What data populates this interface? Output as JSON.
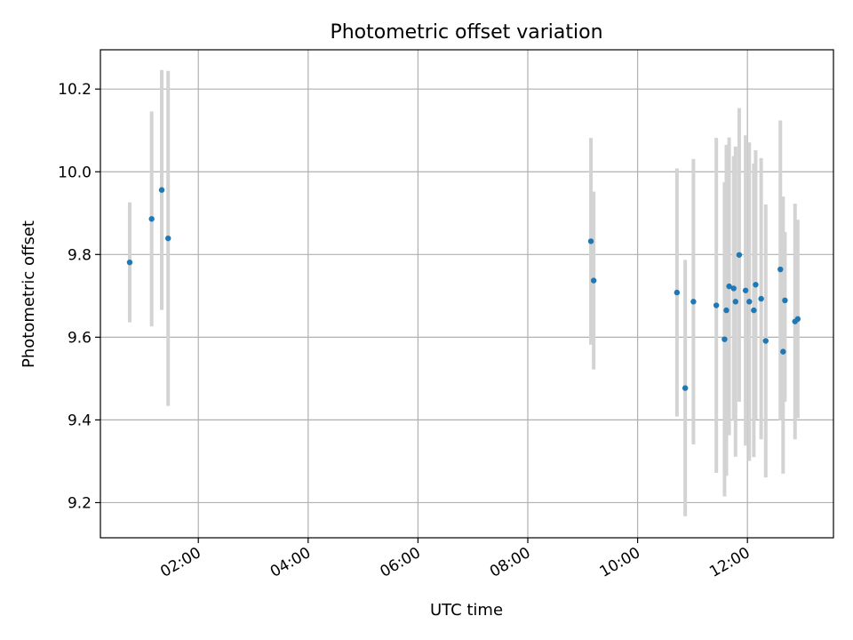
{
  "chart_data": {
    "type": "scatter",
    "title": "Photometric offset variation",
    "xlabel": "UTC time",
    "ylabel": "Photometric offset",
    "x_unit": "UTC hh:mm",
    "xlim": [
      "00:13",
      "13:34"
    ],
    "ylim": [
      9.115,
      10.295
    ],
    "xticks": [
      "02:00",
      "04:00",
      "06:00",
      "08:00",
      "10:00",
      "12:00"
    ],
    "yticks": [
      9.2,
      9.4,
      9.6,
      9.8,
      10.0,
      10.2
    ],
    "grid": true,
    "legend": "none",
    "colors": {
      "point": "#1f77b4",
      "errorbar": "#d3d3d3",
      "grid": "#b0b0b0"
    },
    "series": [
      {
        "points": [
          {
            "x": "00:45",
            "y": 9.781,
            "yerr_low": 9.636,
            "yerr_high": 9.926
          },
          {
            "x": "01:09",
            "y": 9.886,
            "yerr_low": 9.626,
            "yerr_high": 10.146
          },
          {
            "x": "01:20",
            "y": 9.956,
            "yerr_low": 9.666,
            "yerr_high": 10.246
          },
          {
            "x": "01:27",
            "y": 9.839,
            "yerr_low": 9.434,
            "yerr_high": 10.244
          },
          {
            "x": "09:09",
            "y": 9.832,
            "yerr_low": 9.582,
            "yerr_high": 10.082
          },
          {
            "x": "09:12",
            "y": 9.737,
            "yerr_low": 9.522,
            "yerr_high": 9.952
          },
          {
            "x": "10:43",
            "y": 9.708,
            "yerr_low": 9.408,
            "yerr_high": 10.008
          },
          {
            "x": "10:52",
            "y": 9.477,
            "yerr_low": 9.167,
            "yerr_high": 9.787
          },
          {
            "x": "11:01",
            "y": 9.686,
            "yerr_low": 9.341,
            "yerr_high": 10.031
          },
          {
            "x": "11:26",
            "y": 9.677,
            "yerr_low": 9.272,
            "yerr_high": 10.082
          },
          {
            "x": "11:35",
            "y": 9.595,
            "yerr_low": 9.215,
            "yerr_high": 9.975
          },
          {
            "x": "11:37",
            "y": 9.665,
            "yerr_low": 9.265,
            "yerr_high": 10.065
          },
          {
            "x": "11:40",
            "y": 9.723,
            "yerr_low": 9.363,
            "yerr_high": 10.083
          },
          {
            "x": "11:45",
            "y": 9.718,
            "yerr_low": 9.398,
            "yerr_high": 10.038
          },
          {
            "x": "11:47",
            "y": 9.686,
            "yerr_low": 9.311,
            "yerr_high": 10.061
          },
          {
            "x": "11:51",
            "y": 9.799,
            "yerr_low": 9.444,
            "yerr_high": 10.154
          },
          {
            "x": "11:58",
            "y": 9.713,
            "yerr_low": 9.338,
            "yerr_high": 10.088
          },
          {
            "x": "12:02",
            "y": 9.686,
            "yerr_low": 9.301,
            "yerr_high": 10.071
          },
          {
            "x": "12:07",
            "y": 9.665,
            "yerr_low": 9.31,
            "yerr_high": 10.02
          },
          {
            "x": "12:09",
            "y": 9.727,
            "yerr_low": 9.402,
            "yerr_high": 10.052
          },
          {
            "x": "12:15",
            "y": 9.693,
            "yerr_low": 9.353,
            "yerr_high": 10.033
          },
          {
            "x": "12:20",
            "y": 9.591,
            "yerr_low": 9.261,
            "yerr_high": 9.921
          },
          {
            "x": "12:36",
            "y": 9.764,
            "yerr_low": 9.399,
            "yerr_high": 10.124
          },
          {
            "x": "12:39",
            "y": 9.565,
            "yerr_low": 9.27,
            "yerr_high": 9.94
          },
          {
            "x": "12:41",
            "y": 9.689,
            "yerr_low": 9.444,
            "yerr_high": 9.854
          },
          {
            "x": "12:52",
            "y": 9.638,
            "yerr_low": 9.353,
            "yerr_high": 9.923
          },
          {
            "x": "12:55",
            "y": 9.644,
            "yerr_low": 9.404,
            "yerr_high": 9.884
          }
        ]
      }
    ]
  }
}
